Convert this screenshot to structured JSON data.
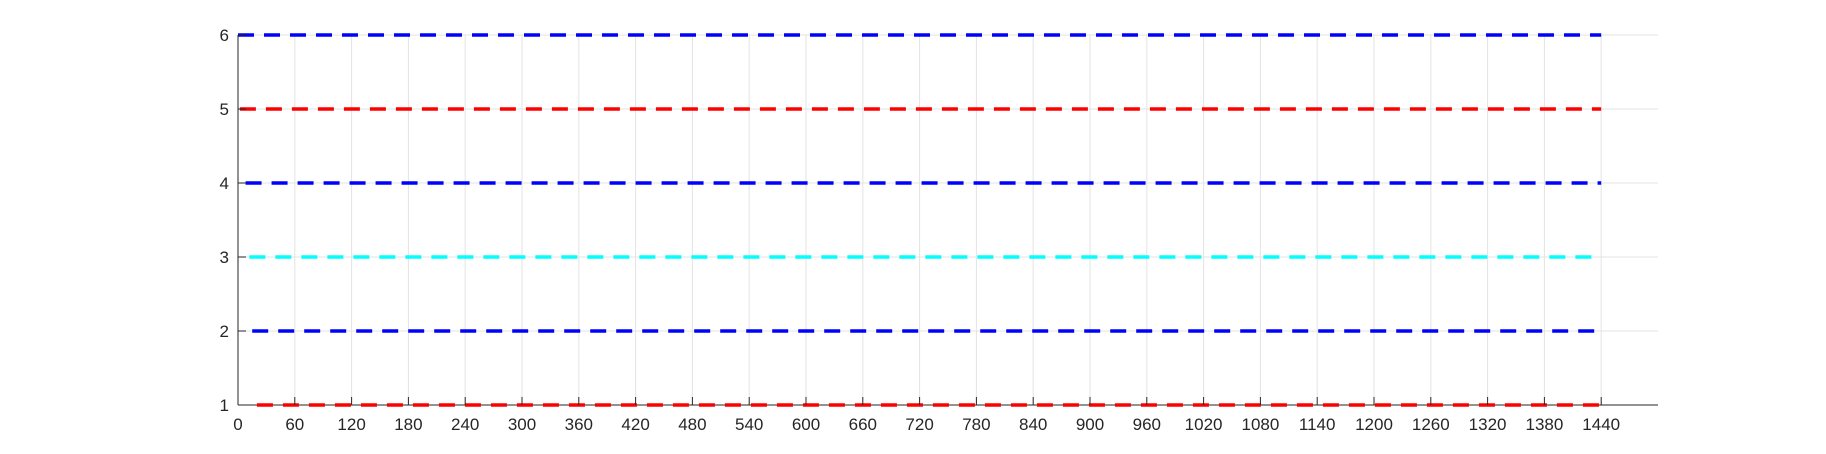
{
  "chart_data": {
    "type": "line",
    "title": "",
    "xlabel": "",
    "ylabel": "",
    "xlim": [
      0,
      1500
    ],
    "ylim": [
      1,
      6
    ],
    "grid": true,
    "legend": "none",
    "xticks": [
      0,
      60,
      120,
      180,
      240,
      300,
      360,
      420,
      480,
      540,
      600,
      660,
      720,
      780,
      840,
      900,
      960,
      1020,
      1080,
      1140,
      1200,
      1260,
      1320,
      1380,
      1440
    ],
    "yticks": [
      1,
      2,
      3,
      4,
      5,
      6
    ],
    "series": [
      {
        "x": [
          20,
          1440
        ],
        "y": [
          1,
          1
        ],
        "color": "#ff0000",
        "style": "dashed"
      },
      {
        "x": [
          15,
          1440
        ],
        "y": [
          2,
          2
        ],
        "color": "#0000ff",
        "style": "dashed"
      },
      {
        "x": [
          12,
          1440
        ],
        "y": [
          3,
          3
        ],
        "color": "#00ffff",
        "style": "dashed"
      },
      {
        "x": [
          8,
          1440
        ],
        "y": [
          4,
          4
        ],
        "color": "#0000ff",
        "style": "dashed"
      },
      {
        "x": [
          2,
          1440
        ],
        "y": [
          5,
          5
        ],
        "color": "#ff0000",
        "style": "dashed"
      },
      {
        "x": [
          0,
          1440
        ],
        "y": [
          6,
          6
        ],
        "color": "#0000ff",
        "style": "dashed"
      }
    ]
  }
}
